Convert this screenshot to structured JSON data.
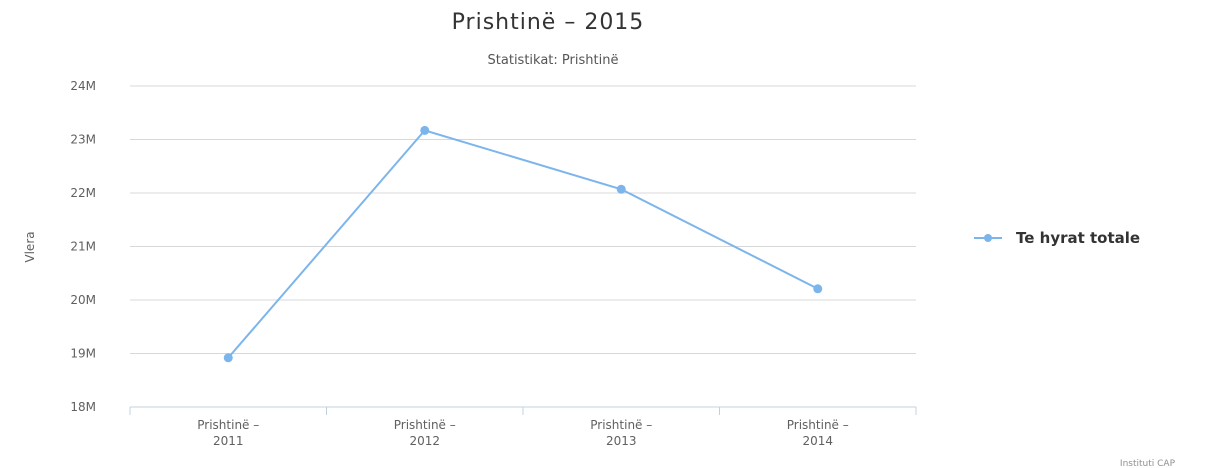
{
  "chart_data": {
    "type": "line",
    "title": "Prishtinë – 2015",
    "subtitle": "Statistikat: Prishtinë",
    "ylabel": "Vlera",
    "xlabel": "",
    "categories": [
      "Prishtinë – 2011",
      "Prishtinë – 2012",
      "Prishtinë – 2013",
      "Prishtinë – 2014"
    ],
    "category_lines": [
      [
        "Prishtinë –",
        "2011"
      ],
      [
        "Prishtinë –",
        "2012"
      ],
      [
        "Prishtinë –",
        "2013"
      ],
      [
        "Prishtinë –",
        "2014"
      ]
    ],
    "ylim": [
      18000000,
      24000000
    ],
    "yticks": [
      {
        "value": 18000000,
        "label": "18M"
      },
      {
        "value": 19000000,
        "label": "19M"
      },
      {
        "value": 20000000,
        "label": "20M"
      },
      {
        "value": 21000000,
        "label": "21M"
      },
      {
        "value": 22000000,
        "label": "22M"
      },
      {
        "value": 23000000,
        "label": "23M"
      },
      {
        "value": 24000000,
        "label": "24M"
      }
    ],
    "series": [
      {
        "name": "Te hyrat totale",
        "color": "#7cb5ec",
        "values": [
          18920000,
          23170000,
          22070000,
          20210000
        ]
      }
    ],
    "grid": true,
    "legend_position": "right"
  },
  "credit": "Instituti CAP"
}
